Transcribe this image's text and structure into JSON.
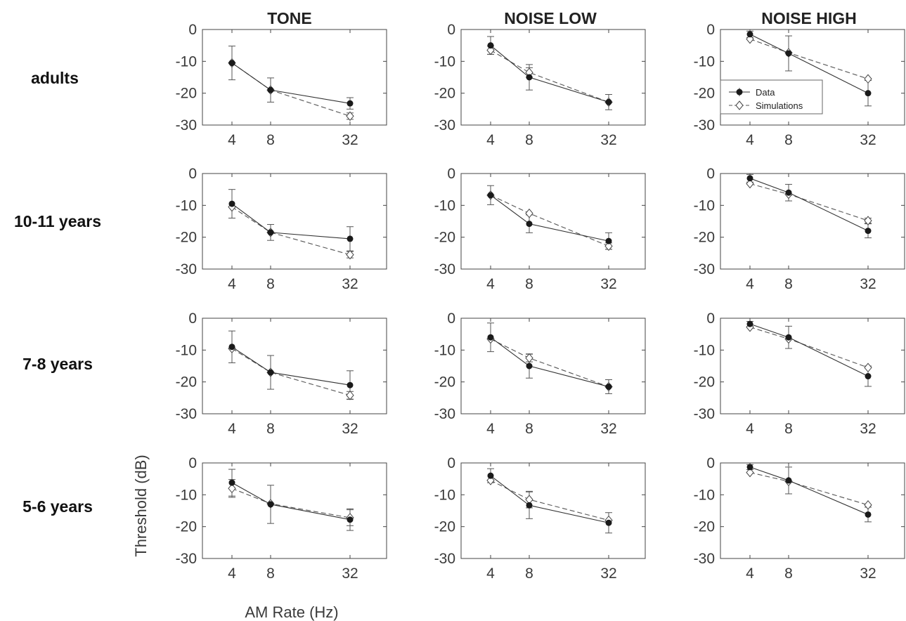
{
  "chart_data": {
    "type": "line",
    "column_titles": [
      "TONE",
      "NOISE LOW",
      "NOISE HIGH"
    ],
    "row_labels": [
      "adults",
      "10-11 years",
      "7-8 years",
      "5-6 years"
    ],
    "x": [
      4,
      8,
      32
    ],
    "x_tick_labels": [
      "4",
      "8",
      "32"
    ],
    "x_scale": "log",
    "ylim": [
      -30,
      0
    ],
    "y_ticks": [
      0,
      -10,
      -20,
      -30
    ],
    "xlabel": "AM Rate (Hz)",
    "ylabel": "Threshold (dB)",
    "legend": {
      "placement": "panel adults / NOISE HIGH, center-left",
      "entries": [
        "Data",
        "Simulations"
      ]
    },
    "series_styles": {
      "Data": {
        "marker": "filled-circle",
        "line": "solid"
      },
      "Simulations": {
        "marker": "open-diamond",
        "line": "dashed"
      }
    },
    "panels": [
      {
        "row": "adults",
        "column": "TONE",
        "data": [
          -10.5,
          -19,
          -23.2
        ],
        "error": [
          5.3,
          3.8,
          1.8
        ],
        "simulations": [
          -10.5,
          -19,
          -27.2
        ],
        "sim_error": [
          0,
          0,
          1
        ]
      },
      {
        "row": "adults",
        "column": "NOISE LOW",
        "data": [
          -5,
          -15,
          -22.8
        ],
        "error": [
          2.8,
          4,
          2.4
        ],
        "simulations": [
          -6.5,
          -13.5,
          -22.8
        ],
        "sim_error": [
          1.3,
          1.5,
          0
        ]
      },
      {
        "row": "adults",
        "column": "NOISE HIGH",
        "data": [
          -1.5,
          -7.5,
          -20
        ],
        "error": [
          1,
          5.5,
          4
        ],
        "simulations": [
          -3,
          -7.3,
          -15.5
        ],
        "sim_error": [
          0,
          0,
          0
        ]
      },
      {
        "row": "10-11 years",
        "column": "TONE",
        "data": [
          -9.5,
          -18.5,
          -20.5
        ],
        "error": [
          4.5,
          2.5,
          3.8
        ],
        "simulations": [
          -10.5,
          -18.5,
          -25.5
        ],
        "sim_error": [
          0,
          0,
          1
        ]
      },
      {
        "row": "10-11 years",
        "column": "NOISE LOW",
        "data": [
          -6.8,
          -15.8,
          -21.2
        ],
        "error": [
          3,
          2.8,
          2.6
        ],
        "simulations": [
          -6.8,
          -12.5,
          -22.8
        ],
        "sim_error": [
          0,
          0,
          1
        ]
      },
      {
        "row": "10-11 years",
        "column": "NOISE HIGH",
        "data": [
          -1.5,
          -6,
          -18
        ],
        "error": [
          1.2,
          2.6,
          2.2
        ],
        "simulations": [
          -3.2,
          -6.5,
          -14.8
        ],
        "sim_error": [
          0,
          0,
          0.8
        ]
      },
      {
        "row": "7-8 years",
        "column": "TONE",
        "data": [
          -9,
          -17,
          -21
        ],
        "error": [
          5,
          5.3,
          4.5
        ],
        "simulations": [
          -9.5,
          -17,
          -24.2
        ],
        "sim_error": [
          0,
          0,
          1.2
        ]
      },
      {
        "row": "7-8 years",
        "column": "NOISE LOW",
        "data": [
          -6,
          -15,
          -21.5
        ],
        "error": [
          4.5,
          3.8,
          2.2
        ],
        "simulations": [
          -6.5,
          -12.5,
          -21.5
        ],
        "sim_error": [
          0,
          1.2,
          0
        ]
      },
      {
        "row": "7-8 years",
        "column": "NOISE HIGH",
        "data": [
          -1.8,
          -6,
          -18.2
        ],
        "error": [
          0.8,
          3.5,
          3.2
        ],
        "simulations": [
          -2.8,
          -6.5,
          -15.5
        ],
        "sim_error": [
          0,
          0,
          0
        ]
      },
      {
        "row": "5-6 years",
        "column": "TONE",
        "data": [
          -6.2,
          -13,
          -17.8
        ],
        "error": [
          4.2,
          6,
          3.4
        ],
        "simulations": [
          -8,
          -12.8,
          -17.2
        ],
        "sim_error": [
          2.8,
          0,
          2.5
        ]
      },
      {
        "row": "5-6 years",
        "column": "NOISE LOW",
        "data": [
          -4,
          -13.3,
          -18.8
        ],
        "error": [
          2.2,
          4.2,
          3.2
        ],
        "simulations": [
          -5.5,
          -11.5,
          -18
        ],
        "sim_error": [
          0,
          2.6,
          0
        ]
      },
      {
        "row": "5-6 years",
        "column": "NOISE HIGH",
        "data": [
          -1.3,
          -5.5,
          -16.2
        ],
        "error": [
          0.8,
          4.2,
          2.3
        ],
        "simulations": [
          -3,
          -5.8,
          -13.2
        ],
        "sim_error": [
          0,
          0,
          0
        ]
      }
    ]
  }
}
